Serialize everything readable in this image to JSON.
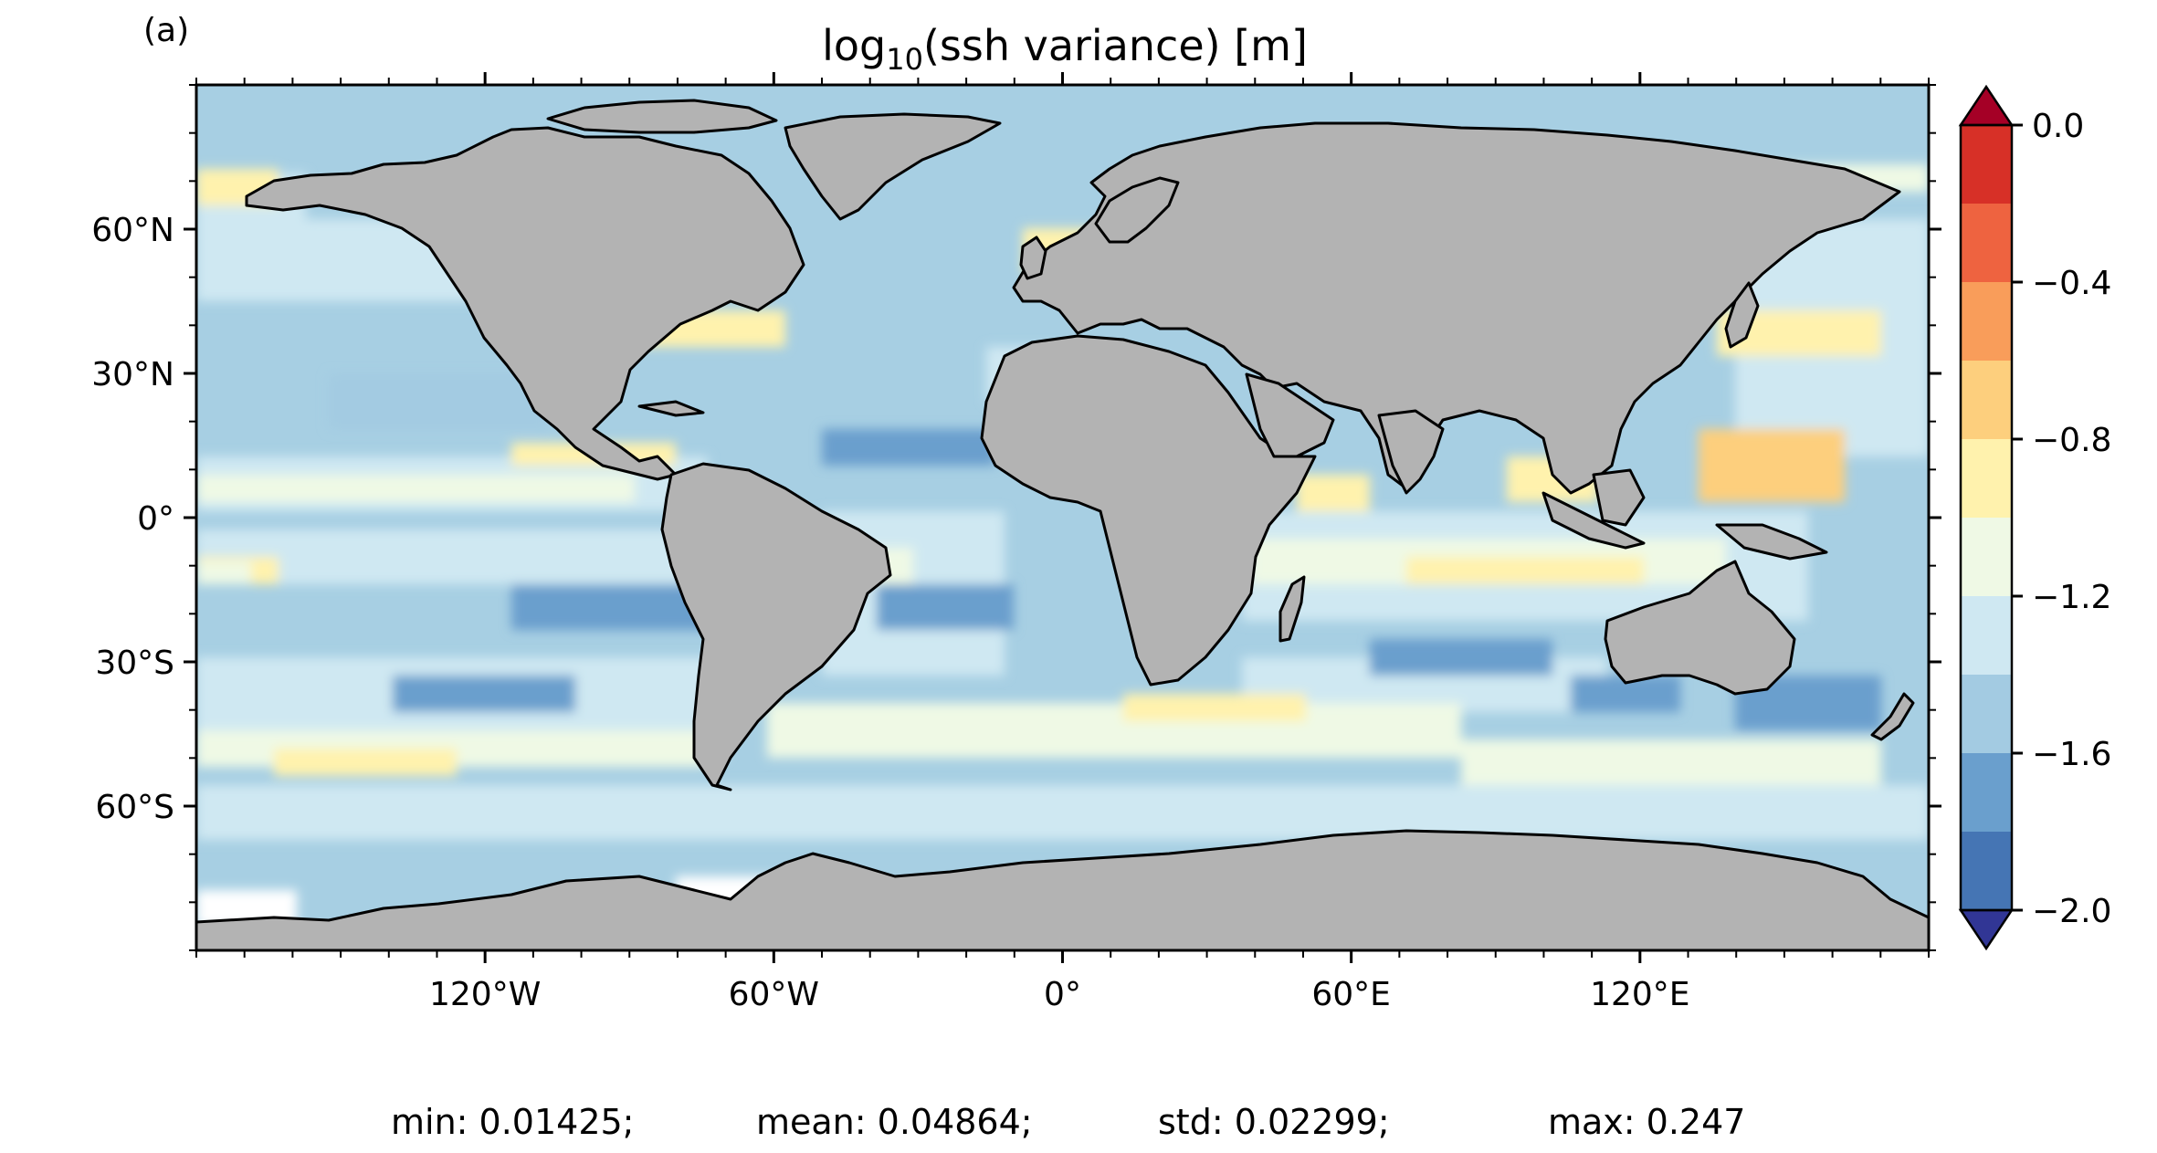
{
  "panel_label": "(a)",
  "title": {
    "prefix": "log",
    "subscript": "10",
    "suffix": "(ssh variance) [m]"
  },
  "map": {
    "projection": "plate-carree",
    "lon_range": [
      -180,
      180
    ],
    "lat_range": [
      -90,
      90
    ],
    "ocean_color": "#a7cfe3",
    "land_color": "#b3b3b3",
    "coast_color": "#000000",
    "x_ticks": [
      {
        "value": -120,
        "label": "120°W"
      },
      {
        "value": -60,
        "label": "60°W"
      },
      {
        "value": 0,
        "label": "0°"
      },
      {
        "value": 60,
        "label": "60°E"
      },
      {
        "value": 120,
        "label": "120°E"
      }
    ],
    "y_ticks": [
      {
        "value": 60,
        "label": "60°N"
      },
      {
        "value": 30,
        "label": "30°N"
      },
      {
        "value": 0,
        "label": "0°"
      },
      {
        "value": -30,
        "label": "30°S"
      },
      {
        "value": -60,
        "label": "60°S"
      }
    ]
  },
  "colorbar": {
    "range": [
      -2.0,
      0.0
    ],
    "levels": [
      -2.0,
      -1.8,
      -1.6,
      -1.4,
      -1.2,
      -1.0,
      -0.8,
      -0.6,
      -0.4,
      -0.2,
      0.0
    ],
    "colors": [
      "#4575b4",
      "#6a9fcd",
      "#a3cbe2",
      "#cfe8f2",
      "#eff9e5",
      "#fff2ad",
      "#fdcf7d",
      "#f99d5a",
      "#ee6340",
      "#d73027"
    ],
    "under_color": "#313695",
    "over_color": "#a50026",
    "tick_labels": [
      {
        "value": 0.0,
        "label": "0.0"
      },
      {
        "value": -0.4,
        "label": "−0.4"
      },
      {
        "value": -0.8,
        "label": "−0.8"
      },
      {
        "value": -1.2,
        "label": "−1.2"
      },
      {
        "value": -1.6,
        "label": "−1.6"
      },
      {
        "value": -2.0,
        "label": "−2.0"
      }
    ]
  },
  "stats": {
    "min": "min: 0.01425;",
    "mean": "mean: 0.04864;",
    "std": "std: 0.02299;",
    "max": "max: 0.247"
  }
}
